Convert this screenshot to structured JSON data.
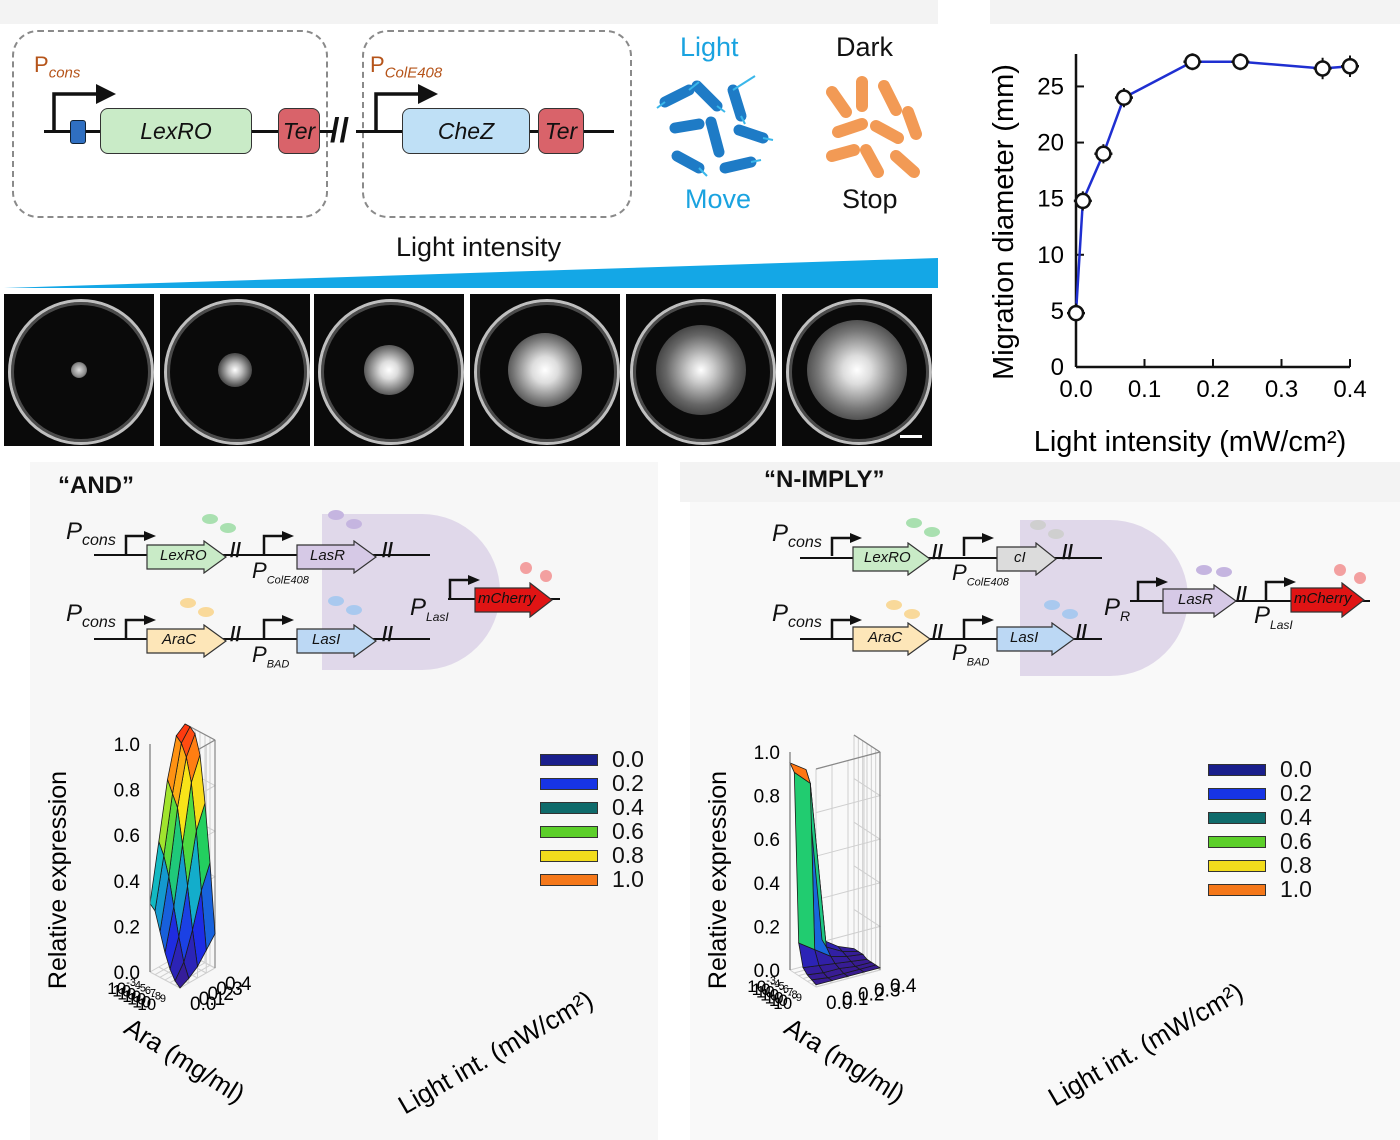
{
  "panel_a": {
    "construct1": {
      "promoter": "P",
      "promoter_sub": "cons",
      "gene": "LexRO",
      "terminator": "Ter"
    },
    "construct2": {
      "promoter": "P",
      "promoter_sub": "ColE408",
      "gene": "CheZ",
      "terminator": "Ter"
    },
    "light_label": "Light",
    "move_label": "Move",
    "dark_label": "Dark",
    "stop_label": "Stop",
    "gradient_label": "Light intensity",
    "plate_count": 6
  },
  "chart_data": {
    "type": "line",
    "x": [
      0.0,
      0.01,
      0.04,
      0.07,
      0.17,
      0.24,
      0.36,
      0.4
    ],
    "y": [
      4.8,
      14.8,
      19.0,
      24.0,
      27.2,
      27.2,
      26.6,
      26.8
    ],
    "error": [
      0.5,
      0.5,
      0.5,
      0.5,
      0.4,
      0.4,
      0.6,
      0.6
    ],
    "xlabel": "Light intensity (mW/cm²)",
    "ylabel": "Migration diameter (mm)",
    "xlim": [
      0.0,
      0.4
    ],
    "ylim": [
      0,
      27
    ],
    "xticks": [
      "0.0",
      "0.1",
      "0.2",
      "0.3",
      "0.4"
    ],
    "yticks": [
      "0",
      "5",
      "10",
      "15",
      "20",
      "25"
    ],
    "line_color": "#1f2fd1"
  },
  "and_panel": {
    "title": "“AND”",
    "pcons": "P",
    "pcons_sub": "cons",
    "row1": {
      "gene1": "LexRO",
      "promoter": "P",
      "promoter_sub": "ColE408",
      "gene2": "LasR"
    },
    "row2": {
      "gene1": "AraC",
      "promoter": "P",
      "promoter_sub": "BAD",
      "gene2": "LasI"
    },
    "output": {
      "promoter": "P",
      "promoter_sub": "LasI",
      "gene": "mCherry"
    },
    "zlabel": "Relative expression",
    "zticks": [
      "0.0",
      "0.2",
      "0.4",
      "0.6",
      "0.8",
      "1.0"
    ],
    "xlabel": "Ara (mg/ml)",
    "xticks": [
      "10",
      "10",
      "10",
      "10",
      "10",
      "10",
      "10"
    ],
    "xtick_exp": [
      "-3",
      "-4",
      "-5",
      "-6",
      "-7",
      "-8",
      "-9"
    ],
    "ylabel": "Light int. (mW/cm²)",
    "yticks": [
      "0.0",
      "0.1",
      "0.2",
      "0.3",
      "0.4"
    ]
  },
  "nimply_panel": {
    "title": "“N-IMPLY”",
    "pcons": "P",
    "pcons_sub": "cons",
    "row1": {
      "gene1": "LexRO",
      "promoter": "P",
      "promoter_sub": "ColE408",
      "gene2": "cI"
    },
    "row2": {
      "gene1": "AraC",
      "promoter": "P",
      "promoter_sub": "BAD",
      "gene2": "LasI"
    },
    "output": {
      "promoter1": "P",
      "promoter1_sub": "R",
      "gene1": "LasR",
      "promoter2": "P",
      "promoter2_sub": "LasI",
      "gene2": "mCherry"
    },
    "zlabel": "Relative expression",
    "zticks": [
      "0.0",
      "0.2",
      "0.4",
      "0.6",
      "0.8",
      "1.0"
    ],
    "xlabel": "Ara (mg/ml)",
    "xticks": [
      "10",
      "10",
      "10",
      "10",
      "10",
      "10",
      "10"
    ],
    "xtick_exp": [
      "-3",
      "-4",
      "-5",
      "-6",
      "-7",
      "-8",
      "-9"
    ],
    "ylabel": "Light int. (mW/cm²)",
    "yticks": [
      "0.0",
      "0.1",
      "0.2",
      "0.3",
      "0.4"
    ]
  },
  "legend": [
    {
      "label": "0.0",
      "color": "#1a1f8c"
    },
    {
      "label": "0.2",
      "color": "#1734e6"
    },
    {
      "label": "0.4",
      "color": "#0f6b6b"
    },
    {
      "label": "0.6",
      "color": "#5ccf2a"
    },
    {
      "label": "0.8",
      "color": "#f2dc1c"
    },
    {
      "label": "1.0",
      "color": "#f5781a"
    }
  ]
}
